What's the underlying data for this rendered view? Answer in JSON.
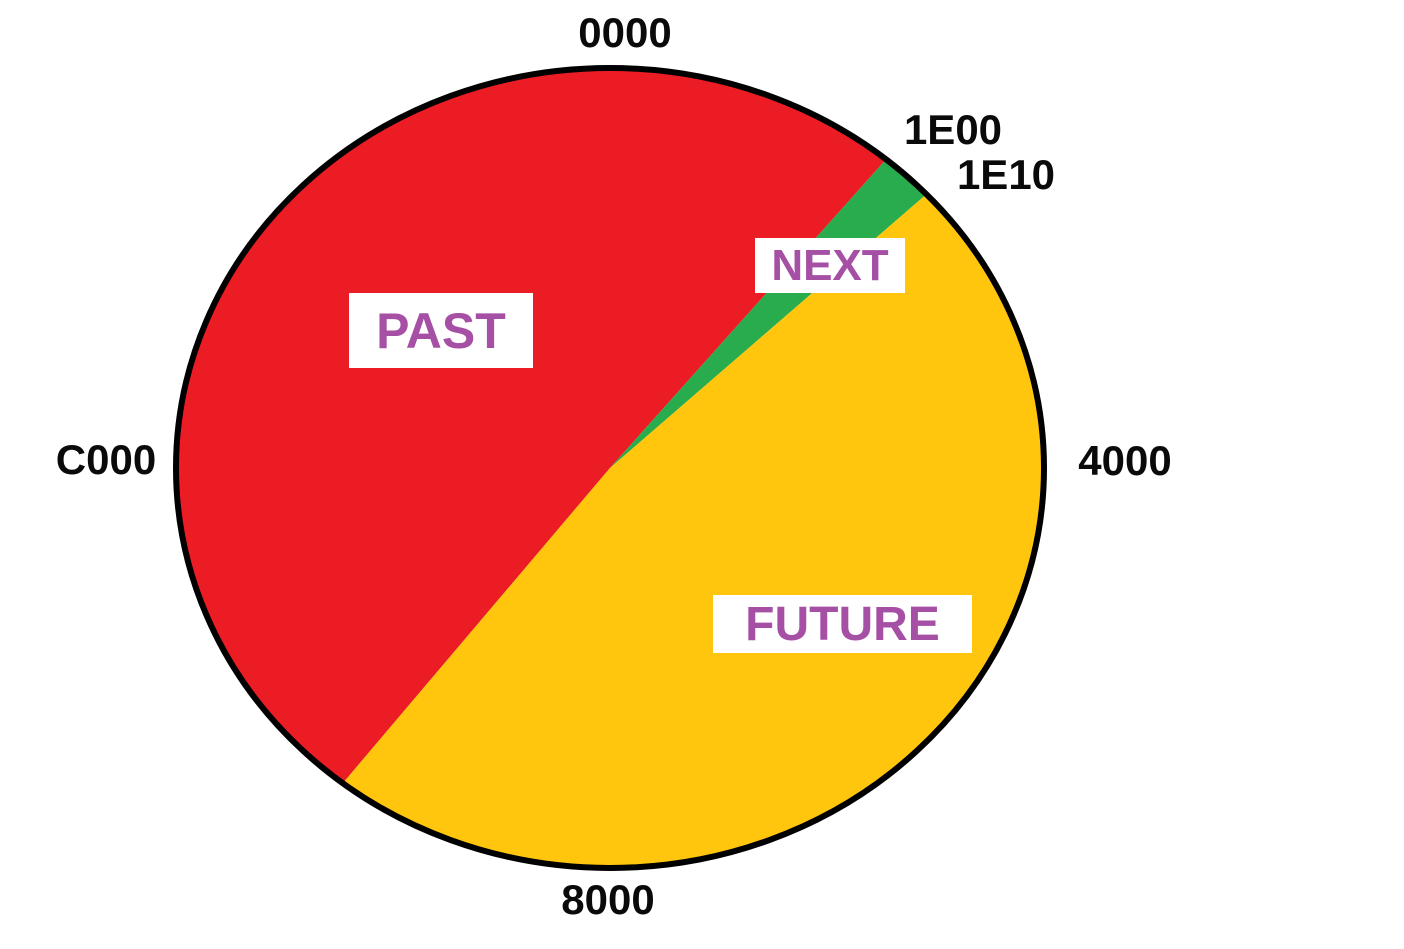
{
  "page": {
    "background_color": "#FFFFFF"
  },
  "chart_data": {
    "type": "pie",
    "outline_color": "#000000",
    "slice_label_color": "#A54FA5",
    "tick_label_color": "#0A0A0A",
    "ticks": [
      {
        "label": "0000",
        "angle_deg": 0
      },
      {
        "label": "4000",
        "angle_deg": 90
      },
      {
        "label": "8000",
        "angle_deg": 180
      },
      {
        "label": "C000",
        "angle_deg": 270
      }
    ],
    "boundary_labels": [
      {
        "label": "1E00",
        "marks": "start of NEXT slice"
      },
      {
        "label": "1E10",
        "marks": "end of NEXT slice"
      }
    ],
    "slices": [
      {
        "name": "PAST",
        "color": "#EC1C24",
        "start_deg": 218.0,
        "end_deg": 39.5,
        "start_label": null,
        "end_label": "1E00"
      },
      {
        "name": "NEXT",
        "color": "#29AC4D",
        "start_deg": 39.5,
        "end_deg": 46.8,
        "start_label": "1E00",
        "end_label": "1E10"
      },
      {
        "name": "FUTURE",
        "color": "#FFC60D",
        "start_deg": 46.8,
        "end_deg": 218.0,
        "start_label": "1E10",
        "end_label": null
      }
    ]
  }
}
